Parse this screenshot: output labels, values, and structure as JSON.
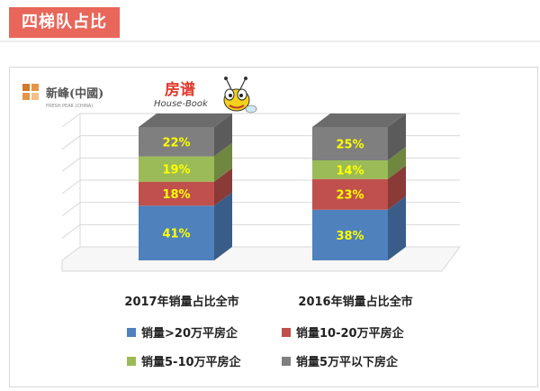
{
  "header": {
    "title": "四梯队占比"
  },
  "logos": {
    "brand_name": "新峰(中國)",
    "brand_english": "FRESH PEAK (CHINA)",
    "partner_name": "房谱",
    "partner_english": "House-Book"
  },
  "colors": {
    "title_bg": "#e8665a",
    "series": [
      "#4f81bd",
      "#c0504d",
      "#9bbb59",
      "#7f7f7f"
    ],
    "label_text": "#ffff00"
  },
  "chart_data": {
    "type": "bar",
    "stacked": true,
    "three_d": true,
    "categories": [
      "2017年销量占比全市",
      "2016年销量占比全市"
    ],
    "series": [
      {
        "name": "销量>20万平房企",
        "values": [
          41,
          38
        ],
        "labels": [
          "41%",
          "38%"
        ]
      },
      {
        "name": "销量10-20万平房企",
        "values": [
          18,
          23
        ],
        "labels": [
          "18%",
          "23%"
        ]
      },
      {
        "name": "销量5-10万平房企",
        "values": [
          19,
          14
        ],
        "labels": [
          "19%",
          "14%"
        ]
      },
      {
        "name": "销量5万平以下房企",
        "values": [
          22,
          25
        ],
        "labels": [
          "22%",
          "25%"
        ]
      }
    ],
    "ylim": [
      0,
      100
    ],
    "grid": true,
    "legend_position": "bottom"
  }
}
